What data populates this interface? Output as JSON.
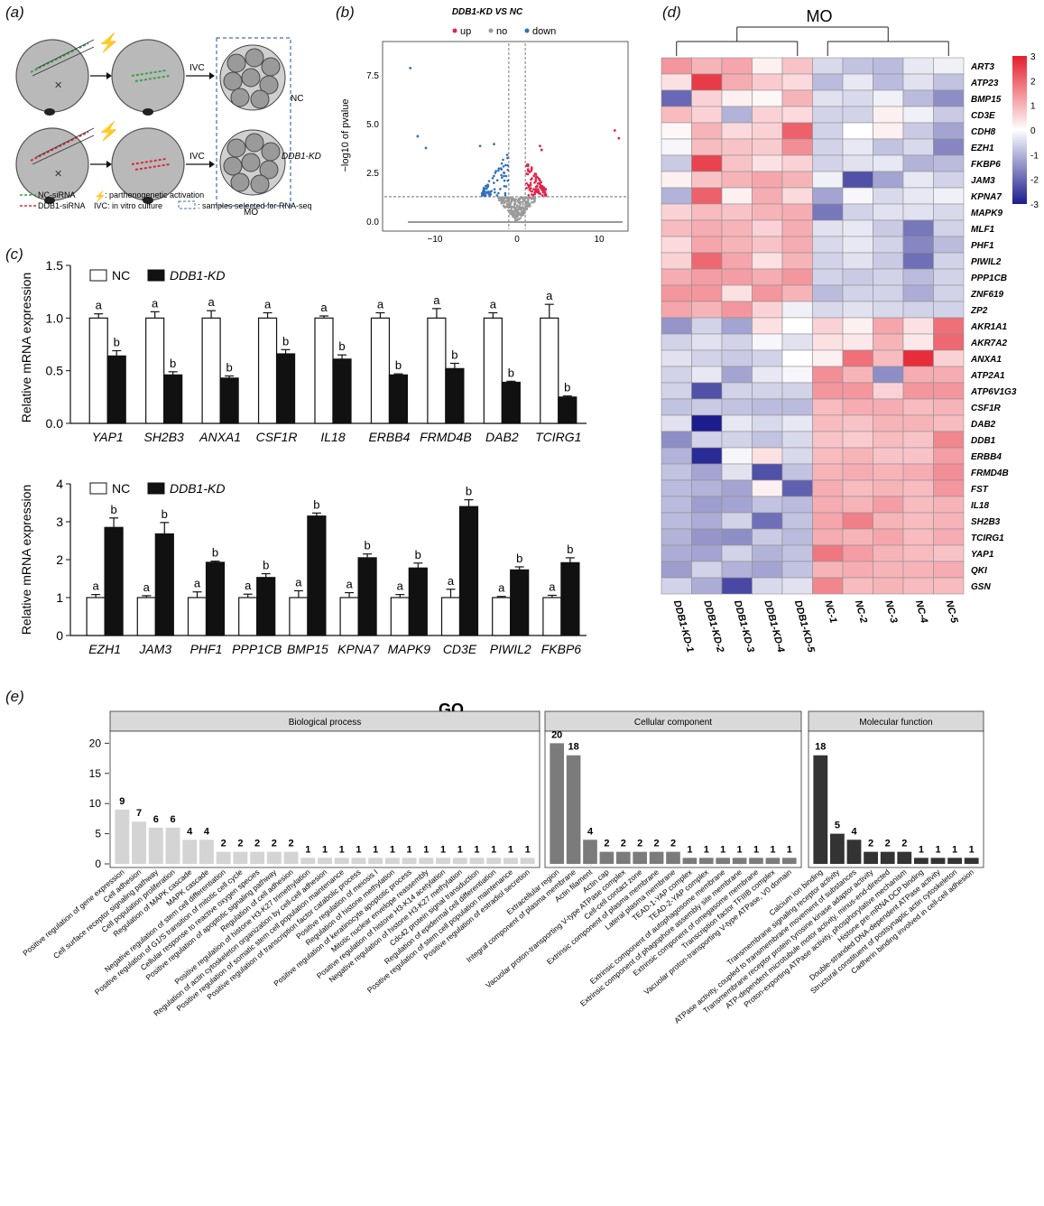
{
  "panel_labels": {
    "a": "(a)",
    "b": "(b)",
    "c": "(c)",
    "d": "(d)",
    "e": "(e)"
  },
  "panel_a": {
    "ivc_label": "IVC",
    "nc_label": "NC",
    "kd_label": "DDB1-KD",
    "mo_label": "MO",
    "legend": {
      "nc_sirna": "NC-siRNA",
      "ddb1_sirna": "DDB1-siRNA",
      "activation": ": parthenogenetic activation",
      "ivc": "IVC: in vitro culture",
      "samples": ": samples selected for RNA-seq"
    },
    "colors": {
      "nc": "#3aa14a",
      "kd": "#d9283a",
      "cell": "#b9b9b9",
      "box": "#3d6fb5",
      "bolt": "#c8b04a"
    }
  },
  "volcano": {
    "title": "DDB1-KD VS NC",
    "legend": [
      "up",
      "no",
      "down"
    ],
    "legend_colors": [
      "#e0244a",
      "#999999",
      "#2f6fc0"
    ],
    "xlabel": "",
    "ylabel": "−log10 of pvalue",
    "xticks": [
      "−10",
      "0",
      "10"
    ],
    "yticks": [
      "0.0",
      "2.5",
      "5.0",
      "7.5"
    ]
  },
  "heatmap": {
    "title": "MO",
    "columns": [
      "DDB1-KD-1",
      "DDB1-KD-2",
      "DDB1-KD-3",
      "DDB1-KD-4",
      "DDB1-KD-5",
      "NC-1",
      "NC-2",
      "NC-3",
      "NC-4",
      "NC-5"
    ],
    "rows": [
      "ART3",
      "ATP23",
      "BMP15",
      "CD3E",
      "CDH8",
      "EZH1",
      "FKBP6",
      "JAM3",
      "KPNA7",
      "MAPK9",
      "MLF1",
      "PHF1",
      "PIWIL2",
      "PPP1CB",
      "ZNF619",
      "ZP2",
      "AKR1A1",
      "AKR7A2",
      "ANXA1",
      "ATP2A1",
      "ATP6V1G3",
      "CSF1R",
      "DAB2",
      "DDB1",
      "ERBB4",
      "FRMD4B",
      "FST",
      "IL18",
      "SH2B3",
      "TCIRG1",
      "YAP1",
      "QKI",
      "GSN"
    ],
    "values": [
      [
        1.4,
        1.0,
        1.2,
        0.2,
        0.8,
        -0.5,
        -0.8,
        -0.9,
        -0.3,
        -0.2
      ],
      [
        0.4,
        2.6,
        1.1,
        0.7,
        0.5,
        -0.9,
        -0.3,
        -0.9,
        -0.4,
        -0.8
      ],
      [
        -2.0,
        0.6,
        0.2,
        0.1,
        1.0,
        -0.4,
        -0.5,
        -0.2,
        -0.9,
        -1.5
      ],
      [
        0.9,
        0.6,
        -1.0,
        0.6,
        0.5,
        -0.6,
        -0.6,
        0.2,
        -0.2,
        -0.7
      ],
      [
        0.1,
        1.0,
        0.5,
        0.6,
        2.1,
        -0.6,
        0.0,
        0.2,
        -0.7,
        -1.2
      ],
      [
        -0.1,
        0.9,
        0.8,
        0.7,
        1.5,
        -0.6,
        -0.3,
        -0.8,
        -0.5,
        -1.6
      ],
      [
        -0.7,
        2.5,
        0.8,
        0.4,
        0.6,
        -0.6,
        -0.4,
        -0.3,
        -1.0,
        -0.9
      ],
      [
        0.2,
        0.8,
        1.0,
        1.2,
        1.0,
        -0.2,
        -2.3,
        -1.2,
        -0.3,
        -0.6
      ],
      [
        -1.0,
        2.1,
        0.2,
        1.1,
        0.5,
        -1.2,
        -0.1,
        -0.5,
        -0.3,
        -0.2
      ],
      [
        0.6,
        0.9,
        0.8,
        1.0,
        1.1,
        -1.8,
        -0.6,
        -0.4,
        -0.4,
        -0.5
      ],
      [
        0.9,
        1.1,
        1.0,
        0.6,
        1.1,
        -0.4,
        -0.3,
        -0.7,
        -1.8,
        -0.6
      ],
      [
        0.5,
        1.2,
        1.0,
        0.8,
        1.1,
        -0.5,
        -0.3,
        -0.6,
        -1.6,
        -0.9
      ],
      [
        0.6,
        2.0,
        1.2,
        0.4,
        1.0,
        -0.6,
        -0.4,
        -0.7,
        -1.9,
        -0.6
      ],
      [
        1.1,
        1.3,
        1.3,
        1.1,
        1.4,
        -0.6,
        -0.7,
        -0.6,
        -0.9,
        -0.6
      ],
      [
        1.4,
        1.4,
        0.4,
        1.4,
        1.0,
        -0.9,
        -0.6,
        -0.6,
        -1.1,
        -0.6
      ],
      [
        1.2,
        1.0,
        1.4,
        0.6,
        -0.2,
        -0.5,
        -0.4,
        -0.5,
        -0.6,
        -0.6
      ],
      [
        -1.4,
        -0.6,
        -1.2,
        0.4,
        0.0,
        0.6,
        0.2,
        1.2,
        0.4,
        1.9
      ],
      [
        -0.6,
        -0.4,
        -0.6,
        -0.1,
        -0.4,
        0.4,
        0.3,
        1.0,
        0.3,
        2.0
      ],
      [
        -0.4,
        -0.6,
        -0.7,
        -0.6,
        0.0,
        0.2,
        1.9,
        0.9,
        2.8,
        0.6
      ],
      [
        -0.6,
        -0.3,
        -1.2,
        -0.3,
        -0.1,
        1.5,
        1.0,
        -1.5,
        1.1,
        1.1
      ],
      [
        -0.6,
        -2.3,
        -0.6,
        -0.6,
        -0.6,
        1.4,
        1.4,
        0.6,
        1.4,
        1.4
      ],
      [
        -0.8,
        -0.7,
        -0.8,
        -0.9,
        -0.9,
        0.9,
        1.1,
        1.1,
        0.9,
        1.0
      ],
      [
        -0.4,
        -3.0,
        -0.3,
        -0.5,
        -0.3,
        0.9,
        0.8,
        1.0,
        1.0,
        0.9
      ],
      [
        -1.5,
        -0.6,
        -0.6,
        -0.8,
        -0.5,
        0.8,
        0.7,
        0.9,
        0.8,
        1.6
      ],
      [
        -1.0,
        -2.8,
        -0.1,
        0.4,
        -0.5,
        0.9,
        1.0,
        0.8,
        0.8,
        1.3
      ],
      [
        -0.8,
        -1.2,
        -0.4,
        -2.3,
        -0.8,
        1.0,
        1.1,
        1.0,
        1.1,
        1.5
      ],
      [
        -0.9,
        -1.0,
        -1.2,
        0.2,
        -2.1,
        1.1,
        0.9,
        1.0,
        0.9,
        1.4
      ],
      [
        -0.9,
        -1.3,
        -1.2,
        -0.8,
        -0.9,
        1.1,
        1.0,
        1.3,
        0.9,
        1.0
      ],
      [
        -0.9,
        -1.1,
        -0.6,
        -1.9,
        -0.8,
        1.2,
        1.7,
        1.0,
        0.9,
        1.0
      ],
      [
        -1.0,
        -1.4,
        -1.5,
        -0.7,
        -0.9,
        1.1,
        1.0,
        1.2,
        0.9,
        1.1
      ],
      [
        -1.1,
        -1.2,
        -0.6,
        -1.0,
        -0.8,
        1.8,
        1.3,
        1.0,
        0.9,
        0.8
      ],
      [
        -1.3,
        -0.6,
        -1.0,
        -1.2,
        -0.8,
        1.0,
        1.1,
        1.0,
        1.0,
        1.1
      ],
      [
        -0.6,
        -1.1,
        -2.4,
        -0.5,
        -0.4,
        1.6,
        0.9,
        1.0,
        0.9,
        0.9
      ]
    ],
    "scale_ticks": [
      "3",
      "2",
      "1",
      "0",
      "-1",
      "-2",
      "-3"
    ],
    "colors": {
      "low": "#1c1c8e",
      "mid": "#ffffff",
      "high": "#e51d2c"
    }
  },
  "chart_data": [
    {
      "type": "bar",
      "panel": "c-top",
      "categories": [
        "YAP1",
        "SH2B3",
        "ANXA1",
        "CSF1R",
        "IL18",
        "ERBB4",
        "FRMD4B",
        "DAB2",
        "TCIRG1"
      ],
      "series": [
        {
          "name": "NC",
          "values": [
            1.0,
            1.0,
            1.0,
            1.0,
            1.0,
            1.0,
            1.0,
            1.0,
            1.0
          ],
          "errors": [
            0.04,
            0.06,
            0.07,
            0.05,
            0.02,
            0.05,
            0.09,
            0.05,
            0.13
          ],
          "letters": [
            "a",
            "a",
            "a",
            "a",
            "a",
            "a",
            "a",
            "a",
            "a"
          ]
        },
        {
          "name": "DDB1-KD",
          "values": [
            0.64,
            0.46,
            0.43,
            0.66,
            0.61,
            0.46,
            0.52,
            0.39,
            0.25
          ],
          "errors": [
            0.05,
            0.03,
            0.02,
            0.04,
            0.04,
            0.01,
            0.05,
            0.01,
            0.01
          ],
          "letters": [
            "b",
            "b",
            "b",
            "b",
            "b",
            "b",
            "b",
            "b",
            "b"
          ]
        }
      ],
      "ylabel": "Relative mRNA expression",
      "yticks": [
        "0.0",
        "0.5",
        "1.0",
        "1.5"
      ],
      "ylim": [
        0,
        1.5
      ]
    },
    {
      "type": "bar",
      "panel": "c-bottom",
      "categories": [
        "EZH1",
        "JAM3",
        "PHF1",
        "PPP1CB",
        "BMP15",
        "KPNA7",
        "MAPK9",
        "CD3E",
        "PIWIL2",
        "FKBP6"
      ],
      "series": [
        {
          "name": "NC",
          "values": [
            1.0,
            1.0,
            1.0,
            1.0,
            1.0,
            1.0,
            1.0,
            1.0,
            1.0,
            1.0
          ],
          "errors": [
            0.08,
            0.05,
            0.15,
            0.09,
            0.18,
            0.13,
            0.08,
            0.22,
            0.03,
            0.06
          ],
          "letters": [
            "a",
            "a",
            "a",
            "a",
            "a",
            "a",
            "a",
            "a",
            "a",
            "a"
          ]
        },
        {
          "name": "DDB1-KD",
          "values": [
            2.85,
            2.68,
            1.93,
            1.53,
            3.15,
            2.05,
            1.78,
            3.4,
            1.73,
            1.92
          ],
          "errors": [
            0.25,
            0.3,
            0.03,
            0.1,
            0.08,
            0.1,
            0.13,
            0.18,
            0.08,
            0.13
          ],
          "letters": [
            "b",
            "b",
            "b",
            "b",
            "b",
            "b",
            "b",
            "b",
            "b",
            "b"
          ]
        }
      ],
      "ylabel": "Relative mRNA expression",
      "yticks": [
        "0",
        "1",
        "2",
        "3",
        "4"
      ],
      "ylim": [
        0,
        4
      ]
    },
    {
      "type": "bar",
      "panel": "e",
      "title": "GO",
      "facets": [
        {
          "name": "Biological process",
          "color": "#d4d4d4",
          "terms": [
            "Positive regulation of gene expression",
            "Cell adhesion",
            "Cell surface receptor signaling pathway",
            "Cell population proliferation",
            "Regulation of MAPK cascade",
            "MAPK cascade",
            "Negative regulation of stem cell differentiation",
            "Positive regulation of G1/S transition of mitotic cell cycle",
            "Cellular response to reactive oxygen species",
            "Positive regulation of apoptotic signaling pathway",
            "Regulation of cell adhesion",
            "Positive regulation of histone H3-K27 trimethylation",
            "Regulation of actin cytoskeleton organization by cell-cell adhesion",
            "Positive regulation of somatic stem cell population maintenance",
            "Positive regulation of transcription factor catabolic process",
            "Positive regulation of meiosis I",
            "Regulation of histone methylation",
            "Positive regulation of keratinocyte apoptotic process",
            "Mitotic nuclear envelope reassembly",
            "Positive regulation of histone H3-K14 acetylation",
            "Negative regulation of histone H3-K27 methylation",
            "Cdc42 protein signal transduction",
            "Regulation of epidermal cell differentiation",
            "Positive regulation of stem cell population maintenance",
            "Positive regulation of estradiol secretion"
          ],
          "values": [
            9,
            7,
            6,
            6,
            4,
            4,
            2,
            2,
            2,
            2,
            2,
            1,
            1,
            1,
            1,
            1,
            1,
            1,
            1,
            1,
            1,
            1,
            1,
            1,
            1
          ]
        },
        {
          "name": "Cellular component",
          "color": "#7b7b7b",
          "terms": [
            "Extracellular region",
            "Integral component of plasma membrane",
            "Actin filament",
            "Actin cap",
            "Vacuolar proton-transporting V-type ATPase complex",
            "Cell-cell contact zone",
            "Extrinsic component of plasma membrane",
            "Lateral plasma membrane",
            "TEAD-1-YAP complex",
            "TEAD-2-YAP complex",
            "Extrinsic component of autophagosome membrane",
            "Extrinsic component of phagophore assembly site membrane",
            "Extrinsic component of omegasome membrane",
            "Transcription factor TFIIIB complex",
            "Vacuolar proton-transporting V-type ATPase, V0 domain"
          ],
          "values": [
            20,
            18,
            4,
            2,
            2,
            2,
            2,
            2,
            1,
            1,
            1,
            1,
            1,
            1,
            1
          ]
        },
        {
          "name": "Molecular function",
          "color": "#333333",
          "terms": [
            "Calcium ion binding",
            "Transmembrane signaling receptor activity",
            "ATPase activity, coupled to transmembrane movement of substances",
            "Transmembrane receptor protein tyrosine kinase adaptor activity",
            "ATP-dependent microtubule motor activity, minus-end-directed",
            "Proton-exporting ATPase activity, phosphorylative mechanism",
            "Histone pre-mRNA DCP binding",
            "Double-stranded DNA-dependent ATPase activity",
            "Structural constituent of postsynaptic actin cytoskeleton",
            "Cadherin binding involved in cell-cell adhesion"
          ],
          "values": [
            18,
            5,
            4,
            2,
            2,
            2,
            1,
            1,
            1,
            1
          ]
        }
      ],
      "yticks": [
        "0",
        "5",
        "10",
        "15",
        "20"
      ],
      "ylim": [
        0,
        22
      ]
    }
  ]
}
